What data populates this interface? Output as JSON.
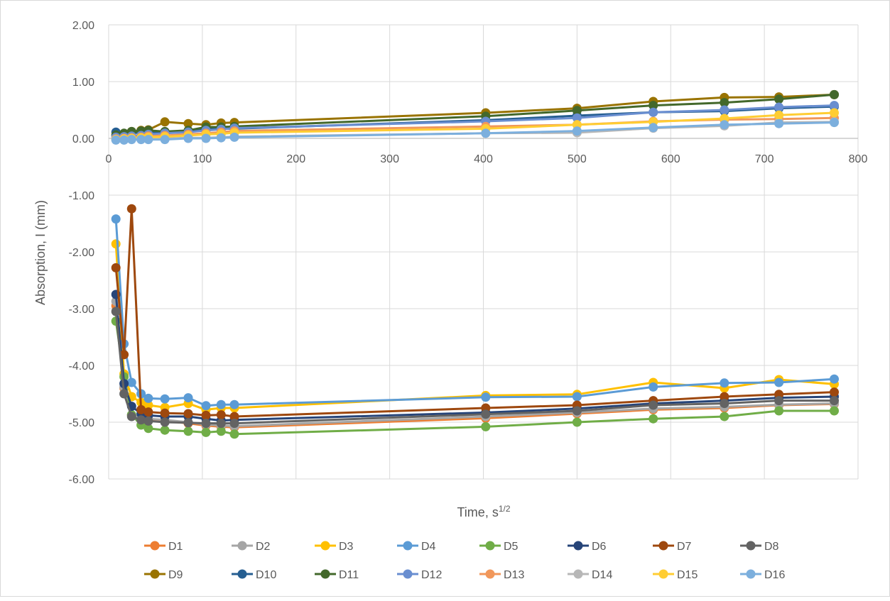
{
  "chart_data": {
    "type": "line",
    "title": "",
    "xlabel": "Time, s",
    "xlabel_superscript": "1/2",
    "ylabel": "Absorption, I (mm)",
    "xlim": [
      0,
      800
    ],
    "ylim": [
      -6,
      2
    ],
    "x_ticks": [
      "0",
      "100",
      "200",
      "300",
      "400",
      "500",
      "600",
      "700",
      "800"
    ],
    "y_ticks": [
      "2.00",
      "1.00",
      "0.00",
      "-1.00",
      "-2.00",
      "-3.00",
      "-4.00",
      "-5.00",
      "-6.00"
    ],
    "grid": true,
    "legend_position": "bottom",
    "x": [
      7.7,
      16.4,
      24.5,
      34.6,
      42.4,
      60,
      84.9,
      103.9,
      120,
      134.2,
      402.5,
      500,
      581.4,
      657.3,
      715.5,
      774.6
    ],
    "series": [
      {
        "name": "D1",
        "color": "#ED7D31",
        "values": [
          -2.95,
          -4.4,
          -4.88,
          -4.93,
          -4.96,
          -4.98,
          -5.02,
          -5.06,
          -5.08,
          -5.09,
          -4.93,
          -4.85,
          -4.78,
          -4.75,
          -4.7,
          -4.68
        ]
      },
      {
        "name": "D2",
        "color": "#A5A5A5",
        "values": [
          -2.87,
          -4.38,
          -4.87,
          -4.92,
          -4.94,
          -4.96,
          -5.0,
          -5.04,
          -5.06,
          -5.07,
          -4.9,
          -4.83,
          -4.76,
          -4.73,
          -4.69,
          -4.67
        ]
      },
      {
        "name": "D3",
        "color": "#FFC000",
        "values": [
          -1.86,
          -4.15,
          -4.55,
          -4.65,
          -4.7,
          -4.74,
          -4.67,
          -4.78,
          -4.75,
          -4.75,
          -4.53,
          -4.51,
          -4.3,
          -4.4,
          -4.25,
          -4.33
        ]
      },
      {
        "name": "D4",
        "color": "#5B9BD5",
        "values": [
          -1.42,
          -3.62,
          -4.3,
          -4.5,
          -4.58,
          -4.59,
          -4.57,
          -4.71,
          -4.69,
          -4.69,
          -4.56,
          -4.55,
          -4.38,
          -4.31,
          -4.3,
          -4.24
        ]
      },
      {
        "name": "D5",
        "color": "#70AD47",
        "values": [
          -3.22,
          -4.2,
          -4.87,
          -5.05,
          -5.11,
          -5.14,
          -5.16,
          -5.18,
          -5.16,
          -5.21,
          -5.08,
          -5.0,
          -4.94,
          -4.9,
          -4.8,
          -4.8
        ]
      },
      {
        "name": "D6",
        "color": "#264478",
        "values": [
          -2.75,
          -4.32,
          -4.72,
          -4.85,
          -4.88,
          -4.9,
          -4.9,
          -4.94,
          -4.97,
          -4.96,
          -4.83,
          -4.76,
          -4.67,
          -4.62,
          -4.57,
          -4.55
        ]
      },
      {
        "name": "D7",
        "color": "#9E480E",
        "values": [
          -2.28,
          -3.81,
          -1.24,
          -4.78,
          -4.82,
          -4.84,
          -4.85,
          -4.88,
          -4.87,
          -4.9,
          -4.75,
          -4.7,
          -4.62,
          -4.55,
          -4.51,
          -4.47
        ]
      },
      {
        "name": "D8",
        "color": "#636363",
        "values": [
          -3.05,
          -4.5,
          -4.9,
          -4.96,
          -4.98,
          -5.0,
          -5.01,
          -5.02,
          -5.02,
          -5.02,
          -4.86,
          -4.8,
          -4.7,
          -4.67,
          -4.62,
          -4.62
        ]
      },
      {
        "name": "D9",
        "color": "#997300",
        "values": [
          0.05,
          0.08,
          0.12,
          0.14,
          0.15,
          0.29,
          0.26,
          0.24,
          0.27,
          0.28,
          0.45,
          0.53,
          0.65,
          0.72,
          0.73,
          0.77
        ]
      },
      {
        "name": "D10",
        "color": "#255E91",
        "values": [
          0.11,
          0.08,
          0.1,
          0.1,
          0.12,
          0.1,
          0.12,
          0.17,
          0.17,
          0.17,
          0.32,
          0.4,
          0.46,
          0.48,
          0.53,
          0.56
        ]
      },
      {
        "name": "D11",
        "color": "#43682B",
        "values": [
          0.06,
          0.09,
          0.12,
          0.13,
          0.14,
          0.12,
          0.14,
          0.2,
          0.2,
          0.21,
          0.39,
          0.49,
          0.58,
          0.63,
          0.69,
          0.77
        ]
      },
      {
        "name": "D12",
        "color": "#698ED0",
        "values": [
          0.02,
          0.03,
          0.04,
          0.05,
          0.07,
          0.09,
          0.11,
          0.14,
          0.16,
          0.18,
          0.3,
          0.36,
          0.46,
          0.5,
          0.55,
          0.58
        ]
      },
      {
        "name": "D13",
        "color": "#F1975A",
        "values": [
          -0.01,
          0.0,
          0.01,
          0.02,
          0.04,
          0.05,
          0.07,
          0.09,
          0.11,
          0.13,
          0.21,
          0.24,
          0.3,
          0.33,
          0.34,
          0.36
        ]
      },
      {
        "name": "D14",
        "color": "#B7B7B7",
        "values": [
          -0.02,
          -0.02,
          -0.01,
          -0.01,
          0.0,
          0.0,
          0.01,
          0.01,
          0.02,
          0.03,
          0.09,
          0.1,
          0.18,
          0.22,
          0.28,
          0.29
        ]
      },
      {
        "name": "D15",
        "color": "#FFCD33",
        "values": [
          -0.02,
          -0.01,
          0.0,
          0.01,
          0.02,
          0.03,
          0.05,
          0.07,
          0.08,
          0.1,
          0.17,
          0.24,
          0.29,
          0.35,
          0.41,
          0.45
        ]
      },
      {
        "name": "D16",
        "color": "#7CAFDD",
        "values": [
          -0.03,
          -0.03,
          -0.02,
          -0.02,
          -0.02,
          -0.02,
          0.0,
          0.0,
          0.01,
          0.02,
          0.09,
          0.13,
          0.19,
          0.24,
          0.26,
          0.28
        ]
      }
    ]
  }
}
